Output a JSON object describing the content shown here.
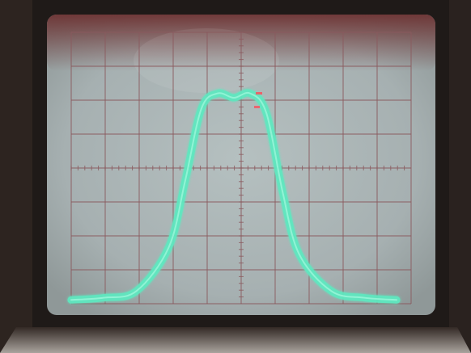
{
  "scene": {
    "subject": "oscilloscope-crt-display",
    "grid": {
      "major_columns": 10,
      "major_rows": 8,
      "minor_ticks_per_division": 5
    },
    "colors": {
      "screen": "#aeb8b8",
      "graticule": "#8a5a5e",
      "trace": "#5fe8c0",
      "bezel_dark": "#1c1816",
      "bezel_mid": "#3a302b",
      "reflection": "#7a3a3a"
    }
  },
  "trace_data": {
    "type": "line",
    "shape": "flat-topped bell curve with a small dip at the peak",
    "x": [
      0.0,
      0.1,
      0.2,
      0.3,
      0.35,
      0.4,
      0.45,
      0.5,
      0.55,
      0.6,
      0.65,
      0.7,
      0.8,
      0.9,
      1.0
    ],
    "y": [
      0.01,
      0.02,
      0.05,
      0.25,
      0.55,
      0.88,
      0.95,
      0.93,
      0.95,
      0.86,
      0.5,
      0.22,
      0.05,
      0.02,
      0.01
    ]
  }
}
